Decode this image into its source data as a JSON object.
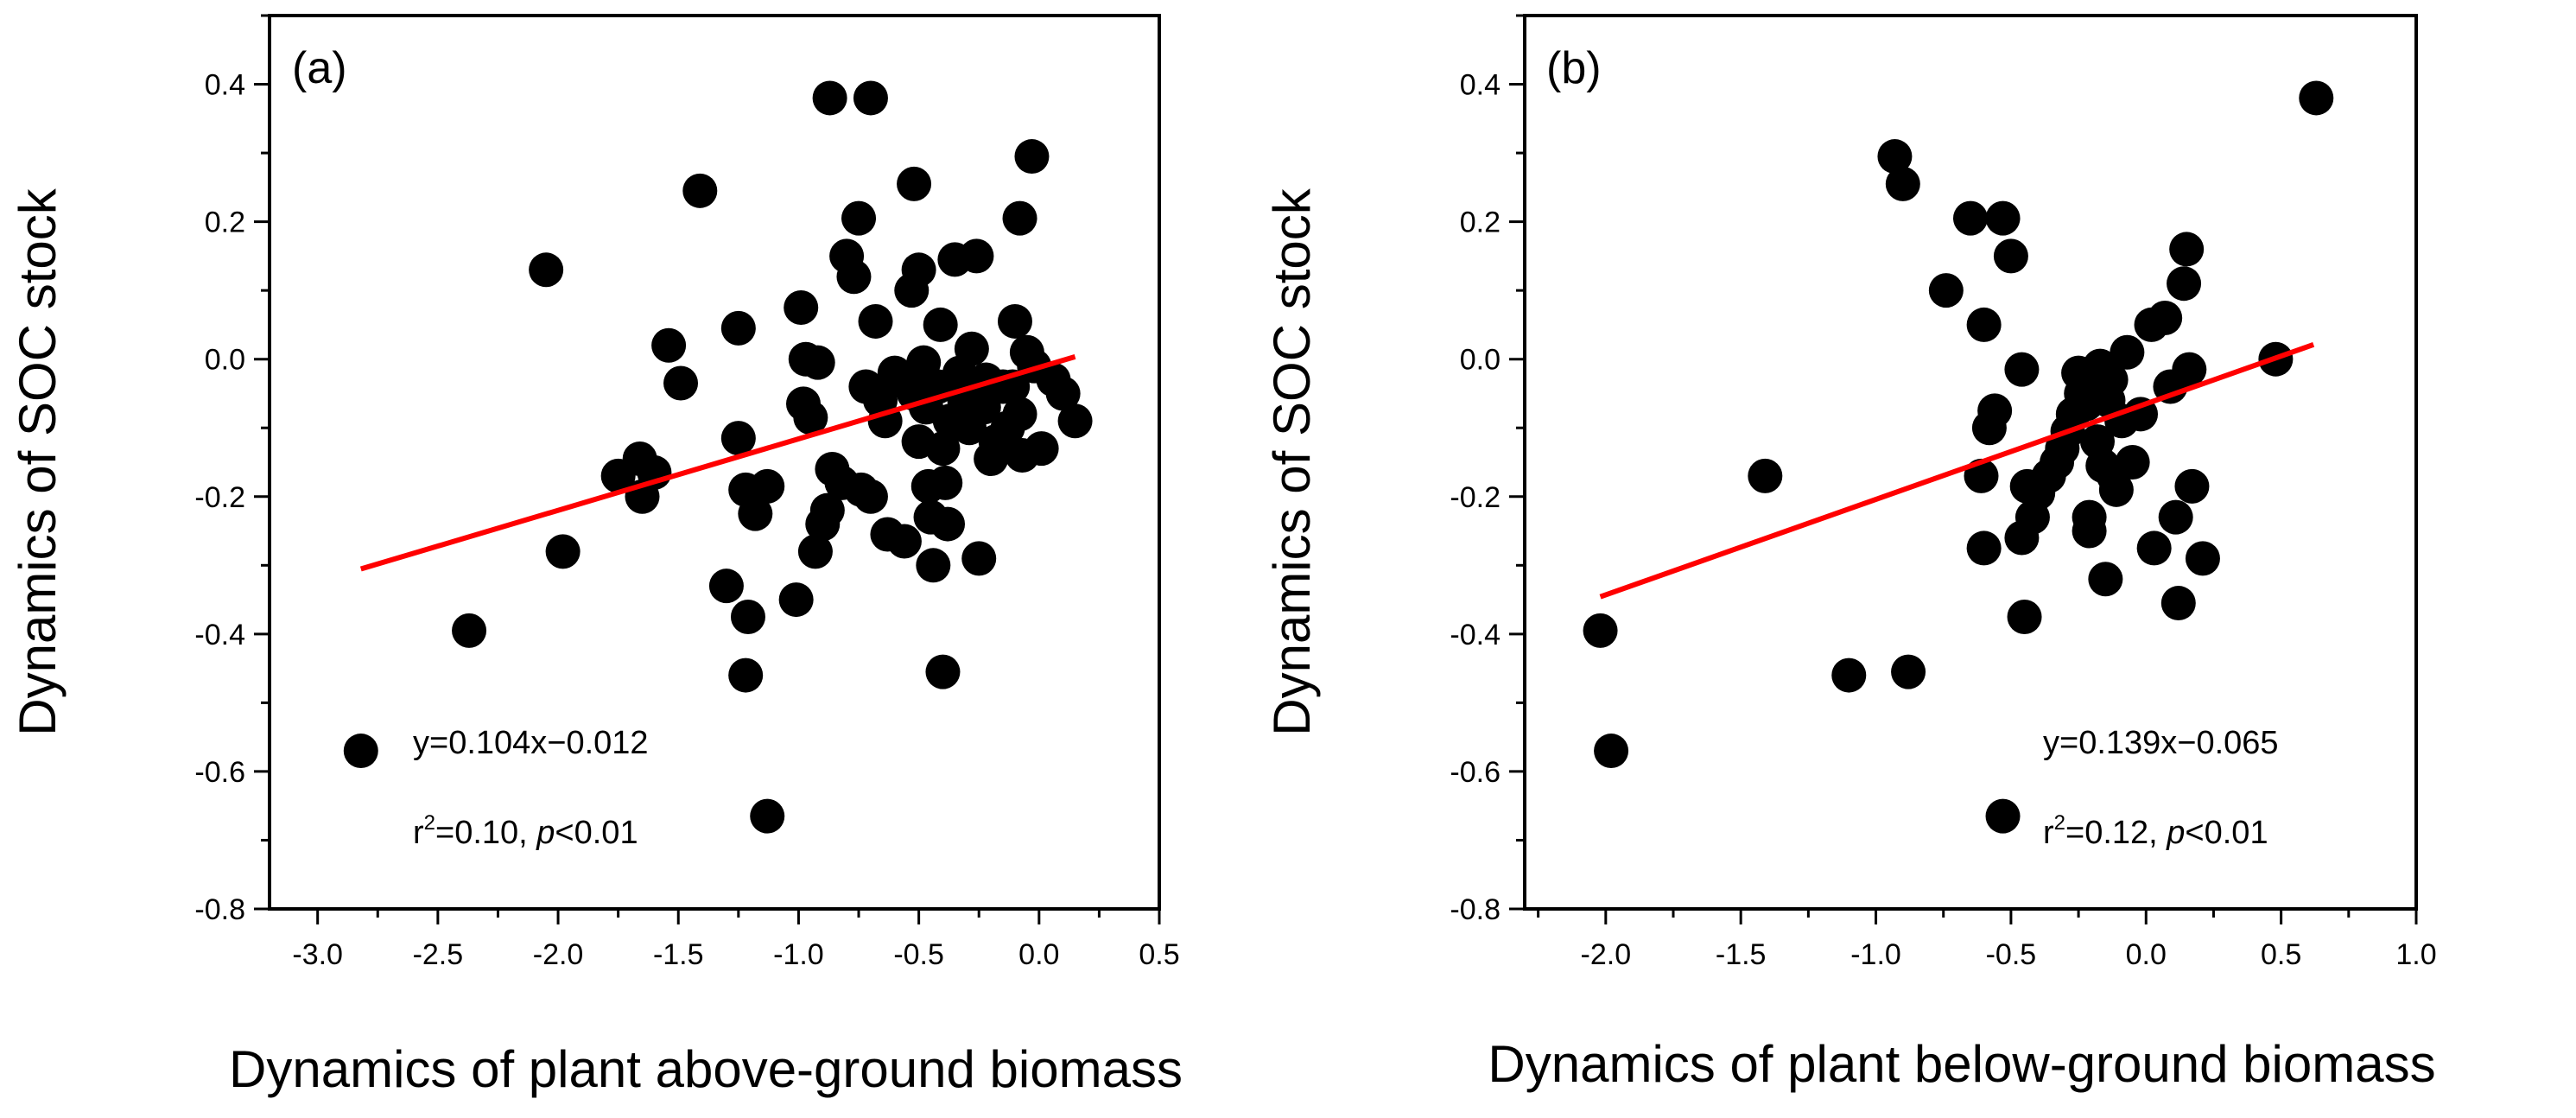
{
  "chart_data": [
    {
      "type": "scatter",
      "panel_label": "(a)",
      "xlabel": "Dynamics of plant above-ground biomass",
      "ylabel": "Dynamics of SOC stock",
      "xlim": [
        -3.2,
        0.5
      ],
      "ylim": [
        -0.8,
        0.5
      ],
      "xticks": [
        "-3.0",
        "-2.5",
        "-2.0",
        "-1.5",
        "-1.0",
        "-0.5",
        "0.0",
        "0.5"
      ],
      "yticks": [
        "0.4",
        "0.2",
        "0.0",
        "-0.2",
        "-0.4",
        "-0.6",
        "-0.8"
      ],
      "fit": {
        "slope": 0.104,
        "intercept": -0.012,
        "x_range": [
          -2.82,
          0.15
        ]
      },
      "equation": "y=0.104x−0.012",
      "r2_text": {
        "r": "r",
        "sup": "2",
        "value": "=0.10, ",
        "p": "p",
        "rest": "<0.01"
      },
      "points": [
        [
          -2.82,
          -0.57
        ],
        [
          -2.37,
          -0.395
        ],
        [
          -2.05,
          0.13
        ],
        [
          -1.98,
          -0.28
        ],
        [
          -1.75,
          -0.17
        ],
        [
          -1.66,
          -0.145
        ],
        [
          -1.65,
          -0.2
        ],
        [
          -1.6,
          -0.165
        ],
        [
          -1.54,
          0.02
        ],
        [
          -1.49,
          -0.035
        ],
        [
          -1.41,
          0.245
        ],
        [
          -1.3,
          -0.33
        ],
        [
          -1.25,
          0.045
        ],
        [
          -1.25,
          -0.115
        ],
        [
          -1.22,
          -0.19
        ],
        [
          -1.21,
          -0.375
        ],
        [
          -1.22,
          -0.46
        ],
        [
          -1.18,
          -0.225
        ],
        [
          -1.13,
          -0.185
        ],
        [
          -1.13,
          -0.665
        ],
        [
          -1.01,
          -0.35
        ],
        [
          -0.99,
          0.075
        ],
        [
          -0.98,
          -0.065
        ],
        [
          -0.97,
          0.0
        ],
        [
          -0.95,
          -0.085
        ],
        [
          -0.93,
          -0.28
        ],
        [
          -0.92,
          -0.005
        ],
        [
          -0.9,
          -0.24
        ],
        [
          -0.87,
          0.38
        ],
        [
          -0.88,
          -0.22
        ],
        [
          -0.86,
          -0.16
        ],
        [
          -0.82,
          -0.18
        ],
        [
          -0.8,
          0.15
        ],
        [
          -0.77,
          0.12
        ],
        [
          -0.75,
          0.205
        ],
        [
          -0.74,
          -0.19
        ],
        [
          -0.72,
          -0.04
        ],
        [
          -0.7,
          0.38
        ],
        [
          -0.7,
          -0.2
        ],
        [
          -0.68,
          0.055
        ],
        [
          -0.66,
          -0.06
        ],
        [
          -0.64,
          -0.09
        ],
        [
          -0.63,
          -0.255
        ],
        [
          -0.6,
          -0.02
        ],
        [
          -0.58,
          -0.03
        ],
        [
          -0.56,
          -0.265
        ],
        [
          -0.53,
          0.1
        ],
        [
          -0.52,
          0.255
        ],
        [
          -0.52,
          -0.05
        ],
        [
          -0.5,
          0.13
        ],
        [
          -0.5,
          -0.12
        ],
        [
          -0.48,
          -0.005
        ],
        [
          -0.47,
          -0.07
        ],
        [
          -0.46,
          -0.185
        ],
        [
          -0.45,
          -0.23
        ],
        [
          -0.44,
          -0.3
        ],
        [
          -0.42,
          -0.04
        ],
        [
          -0.41,
          0.05
        ],
        [
          -0.4,
          -0.13
        ],
        [
          -0.4,
          -0.455
        ],
        [
          -0.39,
          -0.18
        ],
        [
          -0.38,
          -0.24
        ],
        [
          -0.37,
          -0.09
        ],
        [
          -0.35,
          0.145
        ],
        [
          -0.33,
          -0.02
        ],
        [
          -0.31,
          -0.06
        ],
        [
          -0.29,
          -0.1
        ],
        [
          -0.28,
          0.015
        ],
        [
          -0.26,
          0.15
        ],
        [
          -0.25,
          -0.29
        ],
        [
          -0.23,
          -0.07
        ],
        [
          -0.22,
          -0.03
        ],
        [
          -0.2,
          -0.145
        ],
        [
          -0.18,
          -0.12
        ],
        [
          -0.15,
          -0.04
        ],
        [
          -0.13,
          -0.1
        ],
        [
          -0.11,
          -0.04
        ],
        [
          -0.1,
          0.055
        ],
        [
          -0.08,
          -0.08
        ],
        [
          -0.08,
          0.205
        ],
        [
          -0.07,
          -0.14
        ],
        [
          -0.05,
          0.01
        ],
        [
          -0.03,
          0.295
        ],
        [
          -0.02,
          -0.01
        ],
        [
          0.01,
          -0.13
        ],
        [
          0.06,
          -0.03
        ],
        [
          0.1,
          -0.05
        ],
        [
          0.15,
          -0.09
        ]
      ]
    },
    {
      "type": "scatter",
      "panel_label": "(b)",
      "xlabel": "Dynamics of plant below-ground biomass",
      "ylabel": "Dynamics of SOC stock",
      "xlim": [
        -2.3,
        1.0
      ],
      "ylim": [
        -0.8,
        0.5
      ],
      "xticks": [
        "-2.0",
        "-1.5",
        "-1.0",
        "-0.5",
        "0.0",
        "0.5",
        "1.0"
      ],
      "yticks": [
        "0.4",
        "0.2",
        "0.0",
        "-0.2",
        "-0.4",
        "-0.6",
        "-0.8"
      ],
      "fit": {
        "slope": 0.139,
        "intercept": -0.065,
        "x_range": [
          -2.02,
          0.62
        ]
      },
      "equation": "y=0.139x−0.065",
      "r2_text": {
        "r": "r",
        "sup": "2",
        "value": "=0.12, ",
        "p": "p",
        "rest": "<0.01"
      },
      "points": [
        [
          -2.02,
          -0.395
        ],
        [
          -1.98,
          -0.57
        ],
        [
          -1.41,
          -0.17
        ],
        [
          -1.1,
          -0.46
        ],
        [
          -0.93,
          0.295
        ],
        [
          -0.9,
          0.255
        ],
        [
          -0.88,
          -0.455
        ],
        [
          -0.74,
          0.1
        ],
        [
          -0.65,
          0.205
        ],
        [
          -0.61,
          -0.17
        ],
        [
          -0.6,
          0.05
        ],
        [
          -0.6,
          -0.275
        ],
        [
          -0.58,
          -0.1
        ],
        [
          -0.56,
          -0.075
        ],
        [
          -0.53,
          0.205
        ],
        [
          -0.53,
          -0.665
        ],
        [
          -0.5,
          0.15
        ],
        [
          -0.46,
          -0.015
        ],
        [
          -0.46,
          -0.26
        ],
        [
          -0.45,
          -0.375
        ],
        [
          -0.44,
          -0.185
        ],
        [
          -0.42,
          -0.23
        ],
        [
          -0.4,
          -0.195
        ],
        [
          -0.36,
          -0.17
        ],
        [
          -0.33,
          -0.15
        ],
        [
          -0.31,
          -0.13
        ],
        [
          -0.29,
          -0.105
        ],
        [
          -0.27,
          -0.08
        ],
        [
          -0.25,
          -0.02
        ],
        [
          -0.24,
          -0.05
        ],
        [
          -0.22,
          -0.065
        ],
        [
          -0.21,
          -0.23
        ],
        [
          -0.21,
          -0.25
        ],
        [
          -0.2,
          -0.03
        ],
        [
          -0.19,
          -0.04
        ],
        [
          -0.18,
          -0.12
        ],
        [
          -0.17,
          -0.01
        ],
        [
          -0.16,
          -0.155
        ],
        [
          -0.15,
          -0.32
        ],
        [
          -0.14,
          -0.06
        ],
        [
          -0.13,
          -0.03
        ],
        [
          -0.12,
          -0.17
        ],
        [
          -0.11,
          -0.19
        ],
        [
          -0.09,
          -0.09
        ],
        [
          -0.07,
          0.01
        ],
        [
          -0.05,
          -0.15
        ],
        [
          -0.02,
          -0.08
        ],
        [
          0.02,
          0.05
        ],
        [
          0.03,
          -0.275
        ],
        [
          0.07,
          0.06
        ],
        [
          0.09,
          -0.04
        ],
        [
          0.11,
          -0.23
        ],
        [
          0.12,
          -0.355
        ],
        [
          0.14,
          0.11
        ],
        [
          0.15,
          0.16
        ],
        [
          0.16,
          -0.015
        ],
        [
          0.17,
          -0.185
        ],
        [
          0.21,
          -0.29
        ],
        [
          0.48,
          0.0
        ],
        [
          0.63,
          0.38
        ]
      ]
    }
  ]
}
